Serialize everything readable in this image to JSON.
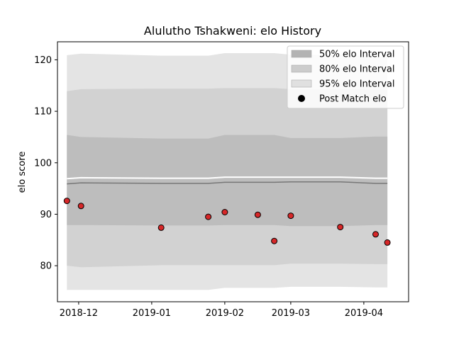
{
  "chart_data": {
    "type": "line",
    "title": "Alulutho Tshakweni: elo History",
    "xlabel": "",
    "ylabel": "elo score",
    "xlim": [
      "2018-11-22",
      "2019-04-20"
    ],
    "ylim": [
      73.0,
      123.5
    ],
    "x_ticks": [
      "2018-12",
      "2019-01",
      "2019-02",
      "2019-03",
      "2019-04"
    ],
    "y_ticks": [
      80,
      90,
      100,
      110,
      120
    ],
    "grid": false,
    "legend_position": "top-right",
    "colors": {
      "band_50": "#bdbdbd",
      "band_80": "#d2d2d2",
      "band_95": "#e4e4e4",
      "mean_line": "#777777",
      "marker_fill": "#d62728",
      "marker_edge": "#000000"
    },
    "legend": [
      {
        "label": "50% elo Interval",
        "kind": "band",
        "color": "#b3b3b3"
      },
      {
        "label": "80% elo Interval",
        "kind": "band",
        "color": "#cccccc"
      },
      {
        "label": "95% elo Interval",
        "kind": "band",
        "color": "#e0e0e0"
      },
      {
        "label": "Post Match elo",
        "kind": "marker",
        "color": "#000000"
      }
    ],
    "x": [
      "2018-11-26",
      "2018-12-02",
      "2019-01-05",
      "2019-01-25",
      "2019-02-01",
      "2019-02-15",
      "2019-02-22",
      "2019-03-01",
      "2019-03-22",
      "2019-04-06",
      "2019-04-11"
    ],
    "series": [
      {
        "role": "post_match",
        "values": [
          92.6,
          91.6,
          87.4,
          89.5,
          90.4,
          89.9,
          84.8,
          89.7,
          87.5,
          86.1,
          84.5
        ]
      },
      {
        "role": "mean",
        "values": [
          95.9,
          96.1,
          96.0,
          96.0,
          96.2,
          96.2,
          96.2,
          96.3,
          96.3,
          96.0,
          96.0
        ]
      },
      {
        "role": "band_50_upper",
        "values": [
          105.4,
          105.0,
          104.7,
          104.7,
          105.4,
          105.4,
          105.4,
          104.8,
          104.8,
          105.1,
          105.1
        ]
      },
      {
        "role": "band_50_lower",
        "values": [
          96.9,
          97.1,
          97.0,
          97.0,
          97.2,
          97.2,
          97.2,
          97.2,
          97.2,
          97.0,
          97.0
        ]
      },
      {
        "role": "band_80_upper",
        "values": [
          113.9,
          114.3,
          114.4,
          114.4,
          114.5,
          114.5,
          114.5,
          114.3,
          114.3,
          114.2,
          114.2
        ]
      },
      {
        "role": "band_80_lower",
        "values": [
          87.9,
          87.9,
          87.8,
          87.8,
          87.9,
          87.9,
          87.9,
          87.7,
          87.7,
          87.9,
          87.9
        ]
      },
      {
        "role": "band_95_upper",
        "values": [
          120.9,
          121.2,
          120.8,
          120.8,
          121.3,
          121.3,
          121.3,
          121.0,
          121.0,
          120.6,
          120.6
        ]
      },
      {
        "role": "band_95_lower",
        "values": [
          80.0,
          79.7,
          80.1,
          80.1,
          80.1,
          80.1,
          80.1,
          80.4,
          80.4,
          80.3,
          80.3
        ]
      },
      {
        "role": "band_95_outer_lower",
        "values": [
          75.3,
          75.3,
          75.3,
          75.3,
          75.7,
          75.7,
          75.7,
          75.9,
          75.9,
          75.8,
          75.8
        ]
      }
    ]
  }
}
